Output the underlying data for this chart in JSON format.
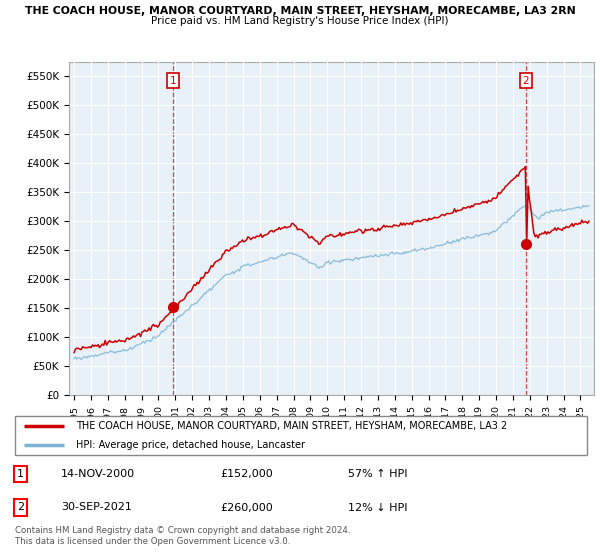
{
  "title_line1": "THE COACH HOUSE, MANOR COURTYARD, MAIN STREET, HEYSHAM, MORECAMBE, LA3 2RN",
  "title_line2": "Price paid vs. HM Land Registry's House Price Index (HPI)",
  "ylabel_ticks": [
    "£0",
    "£50K",
    "£100K",
    "£150K",
    "£200K",
    "£250K",
    "£300K",
    "£350K",
    "£400K",
    "£450K",
    "£500K",
    "£550K"
  ],
  "ytick_values": [
    0,
    50000,
    100000,
    150000,
    200000,
    250000,
    300000,
    350000,
    400000,
    450000,
    500000,
    550000
  ],
  "ylim": [
    0,
    575000
  ],
  "xlim_start": 1994.7,
  "xlim_end": 2025.8,
  "hpi_color": "#7ab3d4",
  "price_color": "#cc0000",
  "transaction1_date": 2000.87,
  "transaction1_price": 152000,
  "transaction2_date": 2021.75,
  "transaction2_price": 260000,
  "legend_price_label": "THE COACH HOUSE, MANOR COURTYARD, MAIN STREET, HEYSHAM, MORECAMBE, LA3 2",
  "legend_hpi_label": "HPI: Average price, detached house, Lancaster",
  "table_row1_num": "1",
  "table_row1_date": "14-NOV-2000",
  "table_row1_price": "£152,000",
  "table_row1_hpi": "57% ↑ HPI",
  "table_row2_num": "2",
  "table_row2_date": "30-SEP-2021",
  "table_row2_price": "£260,000",
  "table_row2_hpi": "12% ↓ HPI",
  "footnote": "Contains HM Land Registry data © Crown copyright and database right 2024.\nThis data is licensed under the Open Government Licence v3.0.",
  "background_color": "#ffffff",
  "chart_bg_color": "#e8f0f8",
  "grid_color": "#ffffff"
}
